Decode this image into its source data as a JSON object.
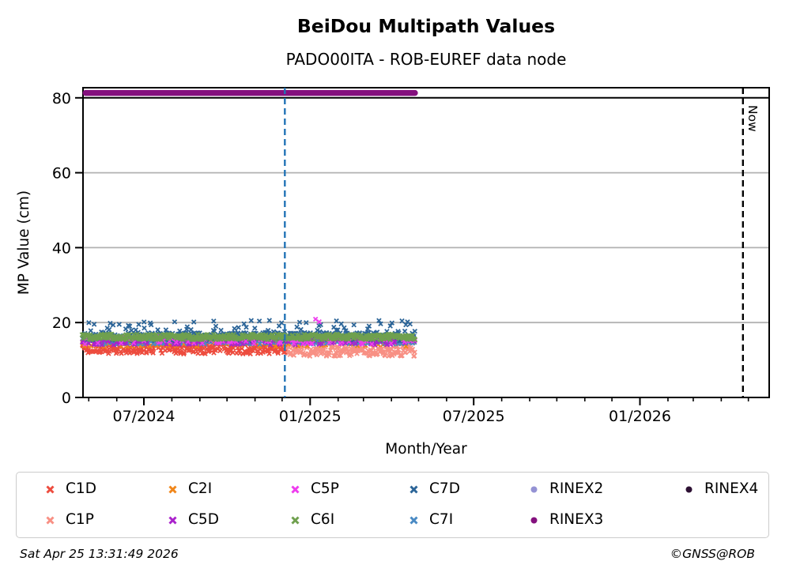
{
  "figure": {
    "title": "BeiDou Multipath Values",
    "subtitle": "PADO00ITA - ROB-EUREF data node"
  },
  "footer": {
    "timestamp": "Sat Apr 25 13:31:49 2026",
    "copyright": "©GNSS@ROB"
  },
  "chart_data": {
    "type": "scatter",
    "title": "BeiDou Multipath Values",
    "subtitle": "PADO00ITA - ROB-EUREF data node",
    "xlabel": "Month/Year",
    "ylabel": "MP Value (cm)",
    "ylim": [
      0,
      82.7
    ],
    "yticks": [
      0,
      20,
      40,
      60,
      80
    ],
    "xticks": [
      {
        "date": "2024-07-01",
        "label": "07/2024"
      },
      {
        "date": "2025-01-01",
        "label": "01/2025"
      },
      {
        "date": "2025-07-01",
        "label": "07/2025"
      },
      {
        "date": "2026-01-01",
        "label": "01/2026"
      }
    ],
    "x_range": {
      "start": "2024-04-24",
      "end": "2026-05-24"
    },
    "grid": {
      "horizontal": true,
      "vertical": false,
      "color": "#b2b2b2"
    },
    "threshold_line": {
      "y": 80,
      "color": "#000000"
    },
    "vlines": [
      {
        "name": "data-end-line",
        "date": "2024-12-04",
        "color": "#2273b6",
        "style": "dashed",
        "label": ""
      },
      {
        "name": "now-line",
        "date": "2026-04-25",
        "color": "#000000",
        "style": "dashed",
        "label": "Now"
      }
    ],
    "availability_line": {
      "name": "RINEX3",
      "y": 81.3,
      "start": "2024-04-24",
      "end": "2025-04-27",
      "color": "#84107e"
    },
    "observed_band_summary": "Daily BeiDou code multipath ~11-21 cm from late Apr 2024 until late Apr 2025; no observations afterwards up to Now (Apr 25 2026)",
    "series": [
      {
        "name": "C1P",
        "color": "#f89084",
        "marker": "cross",
        "start": "2024-12-04",
        "end": "2025-04-27",
        "y_min": 11.0,
        "y_max": 13.8,
        "step_days": 0.8,
        "p": 1
      },
      {
        "name": "C1D",
        "color": "#ed4c3e",
        "marker": "cross",
        "start": "2024-04-24",
        "end": "2024-12-04",
        "y_min": 11.6,
        "y_max": 14.5,
        "step_days": 0.8,
        "p": 1
      },
      {
        "name": "C2I",
        "color": "#f0861a",
        "marker": "cross",
        "start": "2024-04-24",
        "end": "2025-04-27",
        "y_min": 13.6,
        "y_max": 15.8,
        "step_days": 1,
        "p": 0.35
      },
      {
        "name": "C7I",
        "color": "#4a8ac4",
        "marker": "cross",
        "start": "2024-04-24",
        "end": "2025-04-27",
        "y_min": 14.2,
        "y_max": 16.6,
        "step_days": 0.8,
        "p": 1
      },
      {
        "name": "C7D",
        "color": "#2c6598",
        "marker": "cross",
        "start": "2024-04-24",
        "end": "2025-04-27",
        "y_min": 15.0,
        "y_max": 17.3,
        "step_days": 0.8,
        "p": 1,
        "tail": {
          "p": 0.22,
          "min": 17.0,
          "max": 20.6
        }
      },
      {
        "name": "C5D",
        "color": "#aa22cc",
        "marker": "cross",
        "start": "2024-04-24",
        "end": "2025-04-27",
        "y_min": 14.0,
        "y_max": 16.3,
        "step_days": 1,
        "p": 0.4
      },
      {
        "name": "C5P",
        "color": "#ee3cee",
        "marker": "cross",
        "start": "2024-04-24",
        "end": "2025-04-27",
        "y_min": 14.2,
        "y_max": 16.4,
        "step_days": 1,
        "p": 0.3,
        "outliers": [
          {
            "date": "2025-01-07",
            "y": 20.9
          },
          {
            "date": "2025-01-11",
            "y": 20.2
          }
        ]
      },
      {
        "name": "C6I",
        "color": "#6fa04e",
        "marker": "cross",
        "start": "2024-04-24",
        "end": "2025-04-27",
        "y_min": 15.4,
        "y_max": 16.9,
        "step_days": 0.8,
        "p": 1
      }
    ],
    "legend": {
      "position": "bottom",
      "columns": 6,
      "items": [
        {
          "label": "C1D",
          "color": "#ed4c3e",
          "marker": "cross"
        },
        {
          "label": "C1P",
          "color": "#f89084",
          "marker": "cross"
        },
        {
          "label": "C2I",
          "color": "#f0861a",
          "marker": "cross"
        },
        {
          "label": "C5D",
          "color": "#aa22cc",
          "marker": "cross"
        },
        {
          "label": "C5P",
          "color": "#ee3cee",
          "marker": "cross"
        },
        {
          "label": "C6I",
          "color": "#6fa04e",
          "marker": "cross"
        },
        {
          "label": "C7D",
          "color": "#2c6598",
          "marker": "cross"
        },
        {
          "label": "C7I",
          "color": "#4a8ac4",
          "marker": "cross"
        },
        {
          "label": "RINEX2",
          "color": "#9492d4",
          "marker": "dot"
        },
        {
          "label": "RINEX3",
          "color": "#84107e",
          "marker": "dot"
        },
        {
          "label": "RINEX4",
          "color": "#2d1033",
          "marker": "dot"
        }
      ]
    }
  }
}
